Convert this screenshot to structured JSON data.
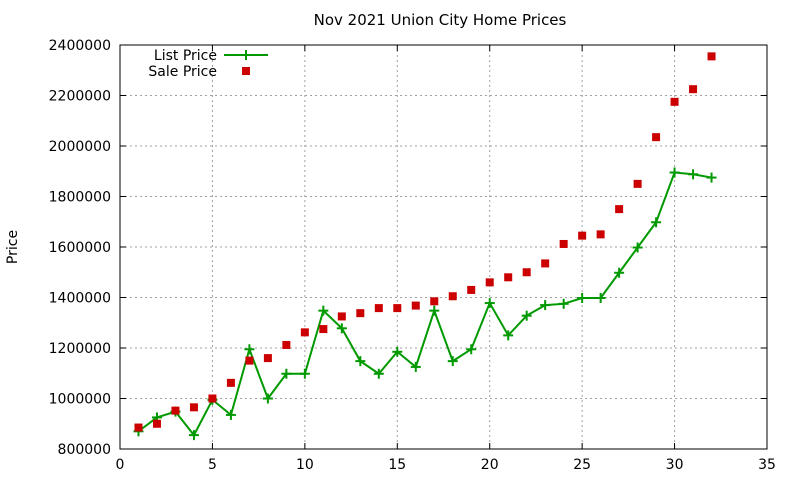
{
  "chart_data": {
    "type": "line",
    "title": "Nov 2021 Union City Home Prices",
    "xlabel": "",
    "ylabel": "Price",
    "xlim": [
      0,
      35
    ],
    "ylim": [
      800000,
      2400000
    ],
    "x_ticks": [
      0,
      5,
      10,
      15,
      20,
      25,
      30,
      35
    ],
    "y_ticks": [
      800000,
      1000000,
      1200000,
      1400000,
      1600000,
      1800000,
      2000000,
      2200000,
      2400000
    ],
    "grid": true,
    "legend_position": "top-left",
    "series": [
      {
        "name": "List Price",
        "style": "line-plus",
        "color": "#009900",
        "x": [
          1,
          2,
          3,
          4,
          5,
          6,
          7,
          8,
          9,
          10,
          11,
          12,
          13,
          14,
          15,
          16,
          17,
          18,
          19,
          20,
          21,
          22,
          23,
          24,
          25,
          26,
          27,
          28,
          29,
          30,
          31,
          32
        ],
        "values": [
          870000,
          925000,
          948000,
          855000,
          995000,
          935000,
          1195000,
          1000000,
          1098000,
          1098000,
          1348000,
          1278000,
          1148000,
          1098000,
          1185000,
          1125000,
          1348000,
          1148000,
          1195000,
          1378000,
          1250000,
          1328000,
          1370000,
          1375000,
          1398000,
          1398000,
          1498000,
          1598000,
          1698000,
          1895000,
          1888000,
          1875000
        ]
      },
      {
        "name": "Sale Price",
        "style": "square-points",
        "color": "#cc0000",
        "x": [
          1,
          2,
          3,
          4,
          5,
          6,
          7,
          8,
          9,
          10,
          11,
          12,
          13,
          14,
          15,
          16,
          17,
          18,
          19,
          20,
          21,
          22,
          23,
          24,
          25,
          26,
          27,
          28,
          29,
          30,
          31,
          32
        ],
        "values": [
          885000,
          900000,
          952000,
          965000,
          1000000,
          1062000,
          1150000,
          1160000,
          1212000,
          1262000,
          1275000,
          1325000,
          1338000,
          1358000,
          1358000,
          1368000,
          1385000,
          1405000,
          1430000,
          1460000,
          1480000,
          1500000,
          1535000,
          1612000,
          1645000,
          1650000,
          1750000,
          1850000,
          2035000,
          2175000,
          2225000,
          2355000
        ]
      }
    ]
  }
}
